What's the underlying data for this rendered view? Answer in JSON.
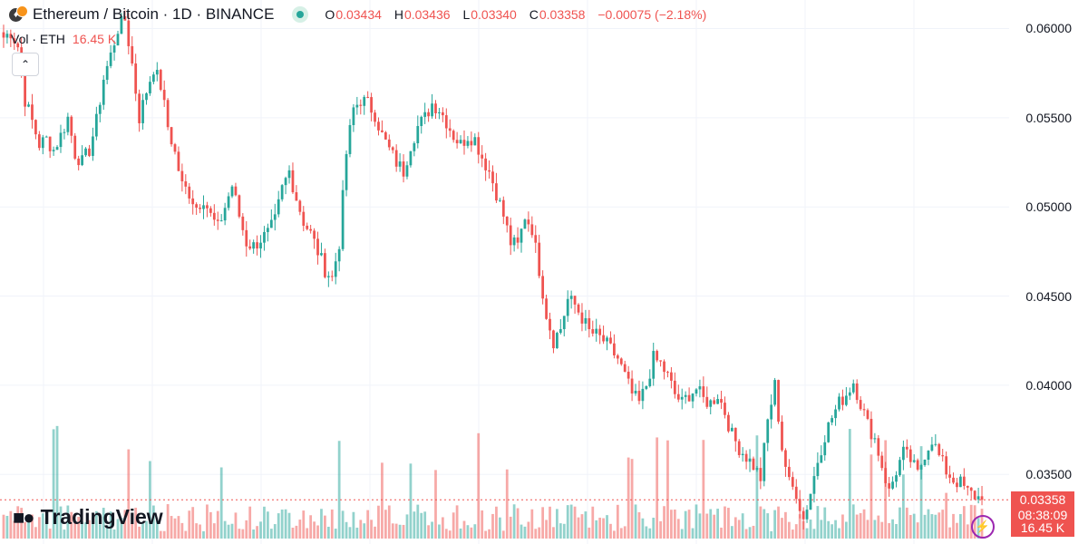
{
  "header": {
    "symbol_title": "Ethereum / Bitcoin · 1D · BINANCE",
    "ohlc": [
      {
        "key": "O",
        "value": "0.03434"
      },
      {
        "key": "H",
        "value": "0.03436"
      },
      {
        "key": "L",
        "value": "0.03340"
      },
      {
        "key": "C",
        "value": "0.03358"
      }
    ],
    "change": "−0.00075 (−2.18%)",
    "volume_label": "Vol · ETH",
    "volume_value": "16.45 K"
  },
  "price_tag": {
    "price": "0.03358",
    "countdown": "08:38:09"
  },
  "volume_tag": "16.45 K",
  "logo_text": "TradingView",
  "colors": {
    "up": "#26a69a",
    "down": "#ef5350",
    "grid": "#f0f3fa",
    "last_price_line": "#ef5350"
  },
  "icons": [
    "ethereum-icon",
    "bitcoin-icon",
    "market-open-icon",
    "chevron-up-icon",
    "tradingview-logo-icon",
    "lightning-icon"
  ],
  "chart_data": {
    "type": "candlestick",
    "y_tick_labels": [
      "0.06000",
      "0.05500",
      "0.05000",
      "0.04500",
      "0.04000",
      "0.03500"
    ],
    "ylim": [
      0.0311,
      0.0616
    ],
    "y_ticks": [
      0.06,
      0.055,
      0.05,
      0.045,
      0.04,
      0.035
    ],
    "last_price": 0.03358,
    "grid": true,
    "close_path": [
      0.0595,
      0.0598,
      0.059,
      0.056,
      0.0548,
      0.0535,
      0.0538,
      0.0532,
      0.054,
      0.055,
      0.053,
      0.0525,
      0.0532,
      0.0548,
      0.0572,
      0.0585,
      0.06,
      0.0605,
      0.058,
      0.055,
      0.0565,
      0.0578,
      0.0568,
      0.0545,
      0.053,
      0.0512,
      0.0508,
      0.05,
      0.0505,
      0.0495,
      0.0488,
      0.05,
      0.0512,
      0.0495,
      0.048,
      0.0478,
      0.0482,
      0.0485,
      0.0492,
      0.051,
      0.052,
      0.0505,
      0.0492,
      0.0485,
      0.0475,
      0.0465,
      0.046,
      0.048,
      0.053,
      0.0555,
      0.056,
      0.0558,
      0.0552,
      0.054,
      0.0532,
      0.0525,
      0.052,
      0.0535,
      0.0545,
      0.055,
      0.0558,
      0.0555,
      0.0548,
      0.054,
      0.0535,
      0.054,
      0.0538,
      0.0528,
      0.052,
      0.0508,
      0.0495,
      0.048,
      0.0478,
      0.0495,
      0.0488,
      0.0465,
      0.044,
      0.0425,
      0.0432,
      0.0448,
      0.0445,
      0.0438,
      0.043,
      0.0428,
      0.0425,
      0.042,
      0.0415,
      0.0405,
      0.0395,
      0.039,
      0.04,
      0.0415,
      0.0412,
      0.0405,
      0.0395,
      0.039,
      0.0395,
      0.0398,
      0.0392,
      0.039,
      0.0395,
      0.0385,
      0.0372,
      0.0365,
      0.036,
      0.0355,
      0.0348,
      0.038,
      0.04,
      0.0365,
      0.0345,
      0.034,
      0.0325,
      0.034,
      0.0358,
      0.0372,
      0.0382,
      0.039,
      0.0395,
      0.0402,
      0.039,
      0.0378,
      0.037,
      0.0355,
      0.034,
      0.0352,
      0.0362,
      0.0358,
      0.035,
      0.0362,
      0.037,
      0.036,
      0.0352,
      0.0347,
      0.0345,
      0.034,
      0.0338,
      0.0336
    ]
  }
}
